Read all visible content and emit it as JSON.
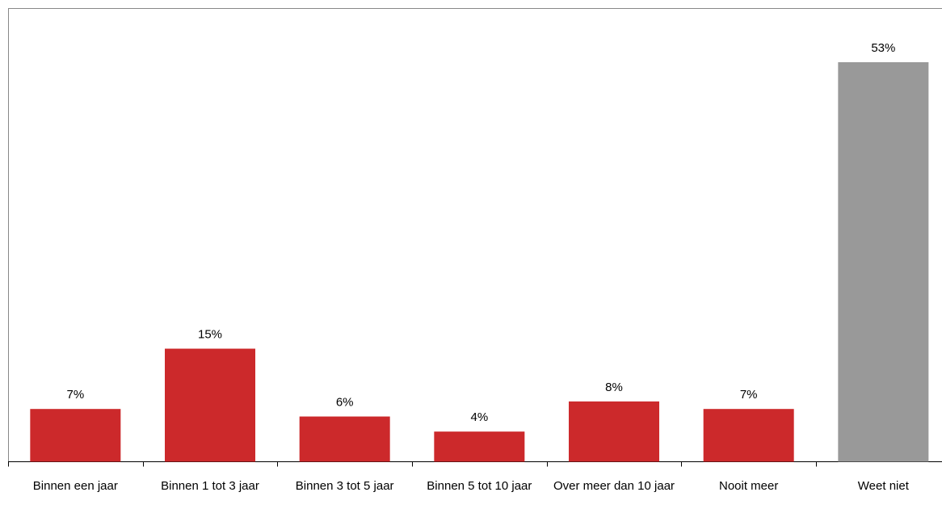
{
  "chart_data": {
    "type": "bar",
    "categories": [
      "Binnen een jaar",
      "Binnen 1 tot 3 jaar",
      "Binnen 3 tot 5 jaar",
      "Binnen 5 tot 10 jaar",
      "Over meer dan 10 jaar",
      "Nooit meer",
      "Weet niet"
    ],
    "values": [
      7,
      15,
      6,
      4,
      8,
      7,
      53
    ],
    "value_labels": [
      "7%",
      "15%",
      "6%",
      "4%",
      "8%",
      "7%",
      "53%"
    ],
    "colors": [
      "#cc292b",
      "#cc292b",
      "#cc292b",
      "#cc292b",
      "#cc292b",
      "#cc292b",
      "#999999"
    ]
  }
}
